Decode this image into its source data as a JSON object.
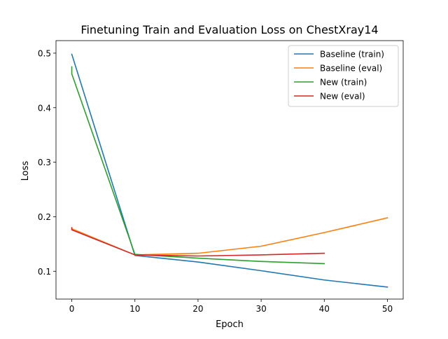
{
  "chart_data": {
    "type": "line",
    "title": "Finetuning Train and Evaluation Loss on ChestXray14",
    "xlabel": "Epoch",
    "ylabel": "Loss",
    "xlim": [
      -2.5,
      52.5
    ],
    "ylim": [
      0.049,
      0.523
    ],
    "xticks": [
      0,
      10,
      20,
      30,
      40,
      50
    ],
    "yticks": [
      0.1,
      0.2,
      0.3,
      0.4,
      0.5
    ],
    "xtick_labels": [
      "0",
      "10",
      "20",
      "30",
      "40",
      "50"
    ],
    "ytick_labels": [
      "0.1",
      "0.2",
      "0.3",
      "0.4",
      "0.5"
    ],
    "grid": false,
    "legend_position": "top-right",
    "series": [
      {
        "name": "Baseline (train)",
        "color": "#1f77b4",
        "points": [
          [
            0,
            0.498
          ],
          [
            10,
            0.129
          ],
          [
            20,
            0.117
          ],
          [
            30,
            0.101
          ],
          [
            40,
            0.084
          ],
          [
            50,
            0.071
          ]
        ]
      },
      {
        "name": "Baseline (eval)",
        "color": "#ff7f0e",
        "points": [
          [
            0,
            0.178
          ],
          [
            10,
            0.13
          ],
          [
            20,
            0.133
          ],
          [
            30,
            0.146
          ],
          [
            40,
            0.171
          ],
          [
            50,
            0.198
          ]
        ]
      },
      {
        "name": "New (train)",
        "color": "#2ca02c",
        "points": [
          [
            0,
            0.475
          ],
          [
            0,
            0.462
          ],
          [
            10,
            0.131
          ],
          [
            20,
            0.124
          ],
          [
            30,
            0.118
          ],
          [
            40,
            0.114
          ]
        ]
      },
      {
        "name": "New (eval)",
        "color": "#d62728",
        "points": [
          [
            0,
            0.18
          ],
          [
            0,
            0.176
          ],
          [
            10,
            0.13
          ],
          [
            20,
            0.128
          ],
          [
            30,
            0.13
          ],
          [
            40,
            0.133
          ]
        ]
      }
    ]
  }
}
